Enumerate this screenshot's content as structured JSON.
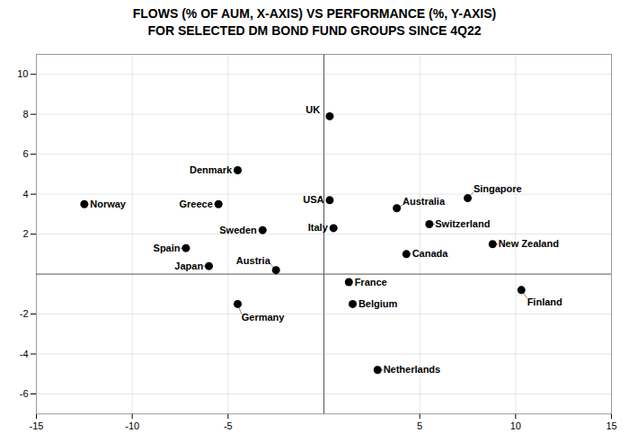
{
  "chart_data": {
    "type": "scatter",
    "title": "FLOWS (% OF AUM, X-AXIS) VS PERFORMANCE (%, Y-AXIS)\nFOR SELECTED DM BOND FUND GROUPS SINCE 4Q22",
    "labels": [
      "UK",
      "Denmark",
      "Norway",
      "Greece",
      "Sweden",
      "Spain",
      "Japan",
      "Austria",
      "Germany",
      "USA",
      "Italy",
      "France",
      "Belgium",
      "Netherlands",
      "Australia",
      "Singapore",
      "Switzerland",
      "Canada",
      "New Zealand",
      "Finland"
    ],
    "x": [
      0.3,
      -4.5,
      -12.5,
      -5.5,
      -3.2,
      -7.2,
      -6.0,
      -2.5,
      -4.5,
      0.3,
      0.5,
      1.3,
      1.5,
      2.8,
      3.8,
      7.5,
      5.5,
      4.3,
      8.8,
      10.3
    ],
    "values": [
      7.9,
      5.2,
      3.5,
      3.5,
      2.2,
      1.3,
      0.4,
      0.2,
      -1.5,
      3.7,
      2.3,
      -0.4,
      -1.5,
      -4.8,
      3.3,
      3.8,
      2.5,
      1.0,
      1.5,
      -0.8
    ],
    "xlim": [
      -15,
      15
    ],
    "ylim": [
      -7,
      11
    ],
    "xticks": [
      -15,
      -10,
      -5,
      5,
      10,
      15
    ],
    "yticks": [
      -6,
      -4,
      -2,
      2,
      4,
      6,
      8,
      10
    ],
    "grid": true
  }
}
